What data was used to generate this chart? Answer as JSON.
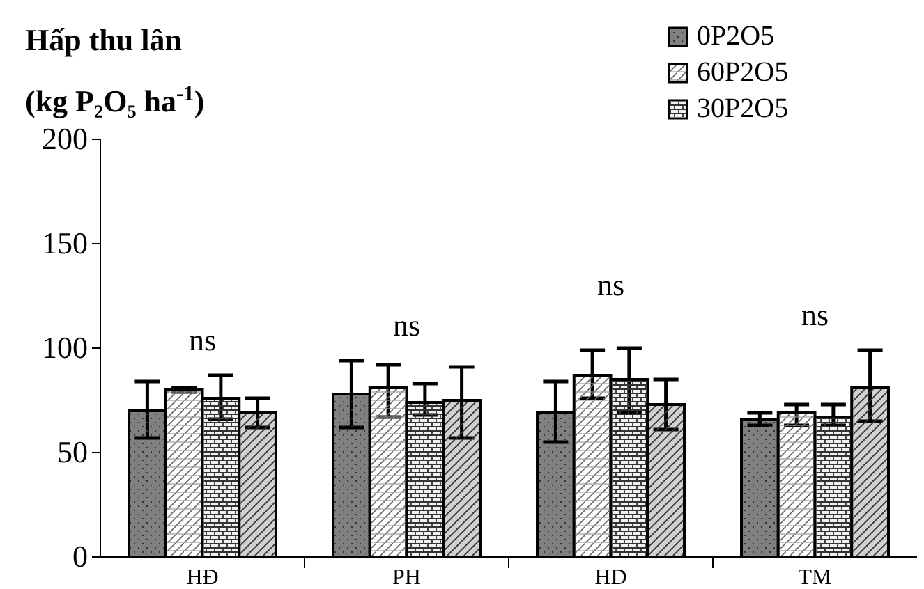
{
  "chart_data": {
    "type": "bar",
    "title": "Hấp thu lân",
    "ylabel": "(kg P₂O₅ ha$^{-1}$)",
    "categories": [
      "HĐ",
      "PH",
      "HD",
      "TM"
    ],
    "series": [
      {
        "name": "0P2O5",
        "color": "#808080",
        "values": [
          70,
          78,
          69,
          66
        ],
        "errors": [
          [
            57,
            84
          ],
          [
            62,
            94
          ],
          [
            55,
            84
          ],
          [
            63,
            69
          ]
        ]
      },
      {
        "name": "60P2O5",
        "color": "#ffffff",
        "values": [
          80,
          81,
          87,
          69
        ],
        "errors": [
          [
            79,
            81
          ],
          [
            67,
            92
          ],
          [
            76,
            99
          ],
          [
            63,
            73
          ]
        ]
      },
      {
        "name": "30P2O5",
        "color": "#f0f0f0",
        "values": [
          76,
          74,
          85,
          67
        ],
        "errors": [
          [
            66,
            87
          ],
          [
            68,
            83
          ],
          [
            69,
            100
          ],
          [
            63,
            73
          ]
        ]
      },
      {
        "color": "#d0d0d0",
        "values": [
          69,
          75,
          73,
          81
        ],
        "errors": [
          [
            62,
            76
          ],
          [
            57,
            91
          ],
          [
            61,
            85
          ],
          [
            65,
            99
          ]
        ]
      }
    ],
    "ylim": [
      0,
      200
    ],
    "yticks": [
      0,
      50,
      100,
      150,
      200
    ],
    "grid": false,
    "legend": "top right",
    "annotations": [
      "ns",
      "ns",
      "ns",
      "ns"
    ]
  }
}
